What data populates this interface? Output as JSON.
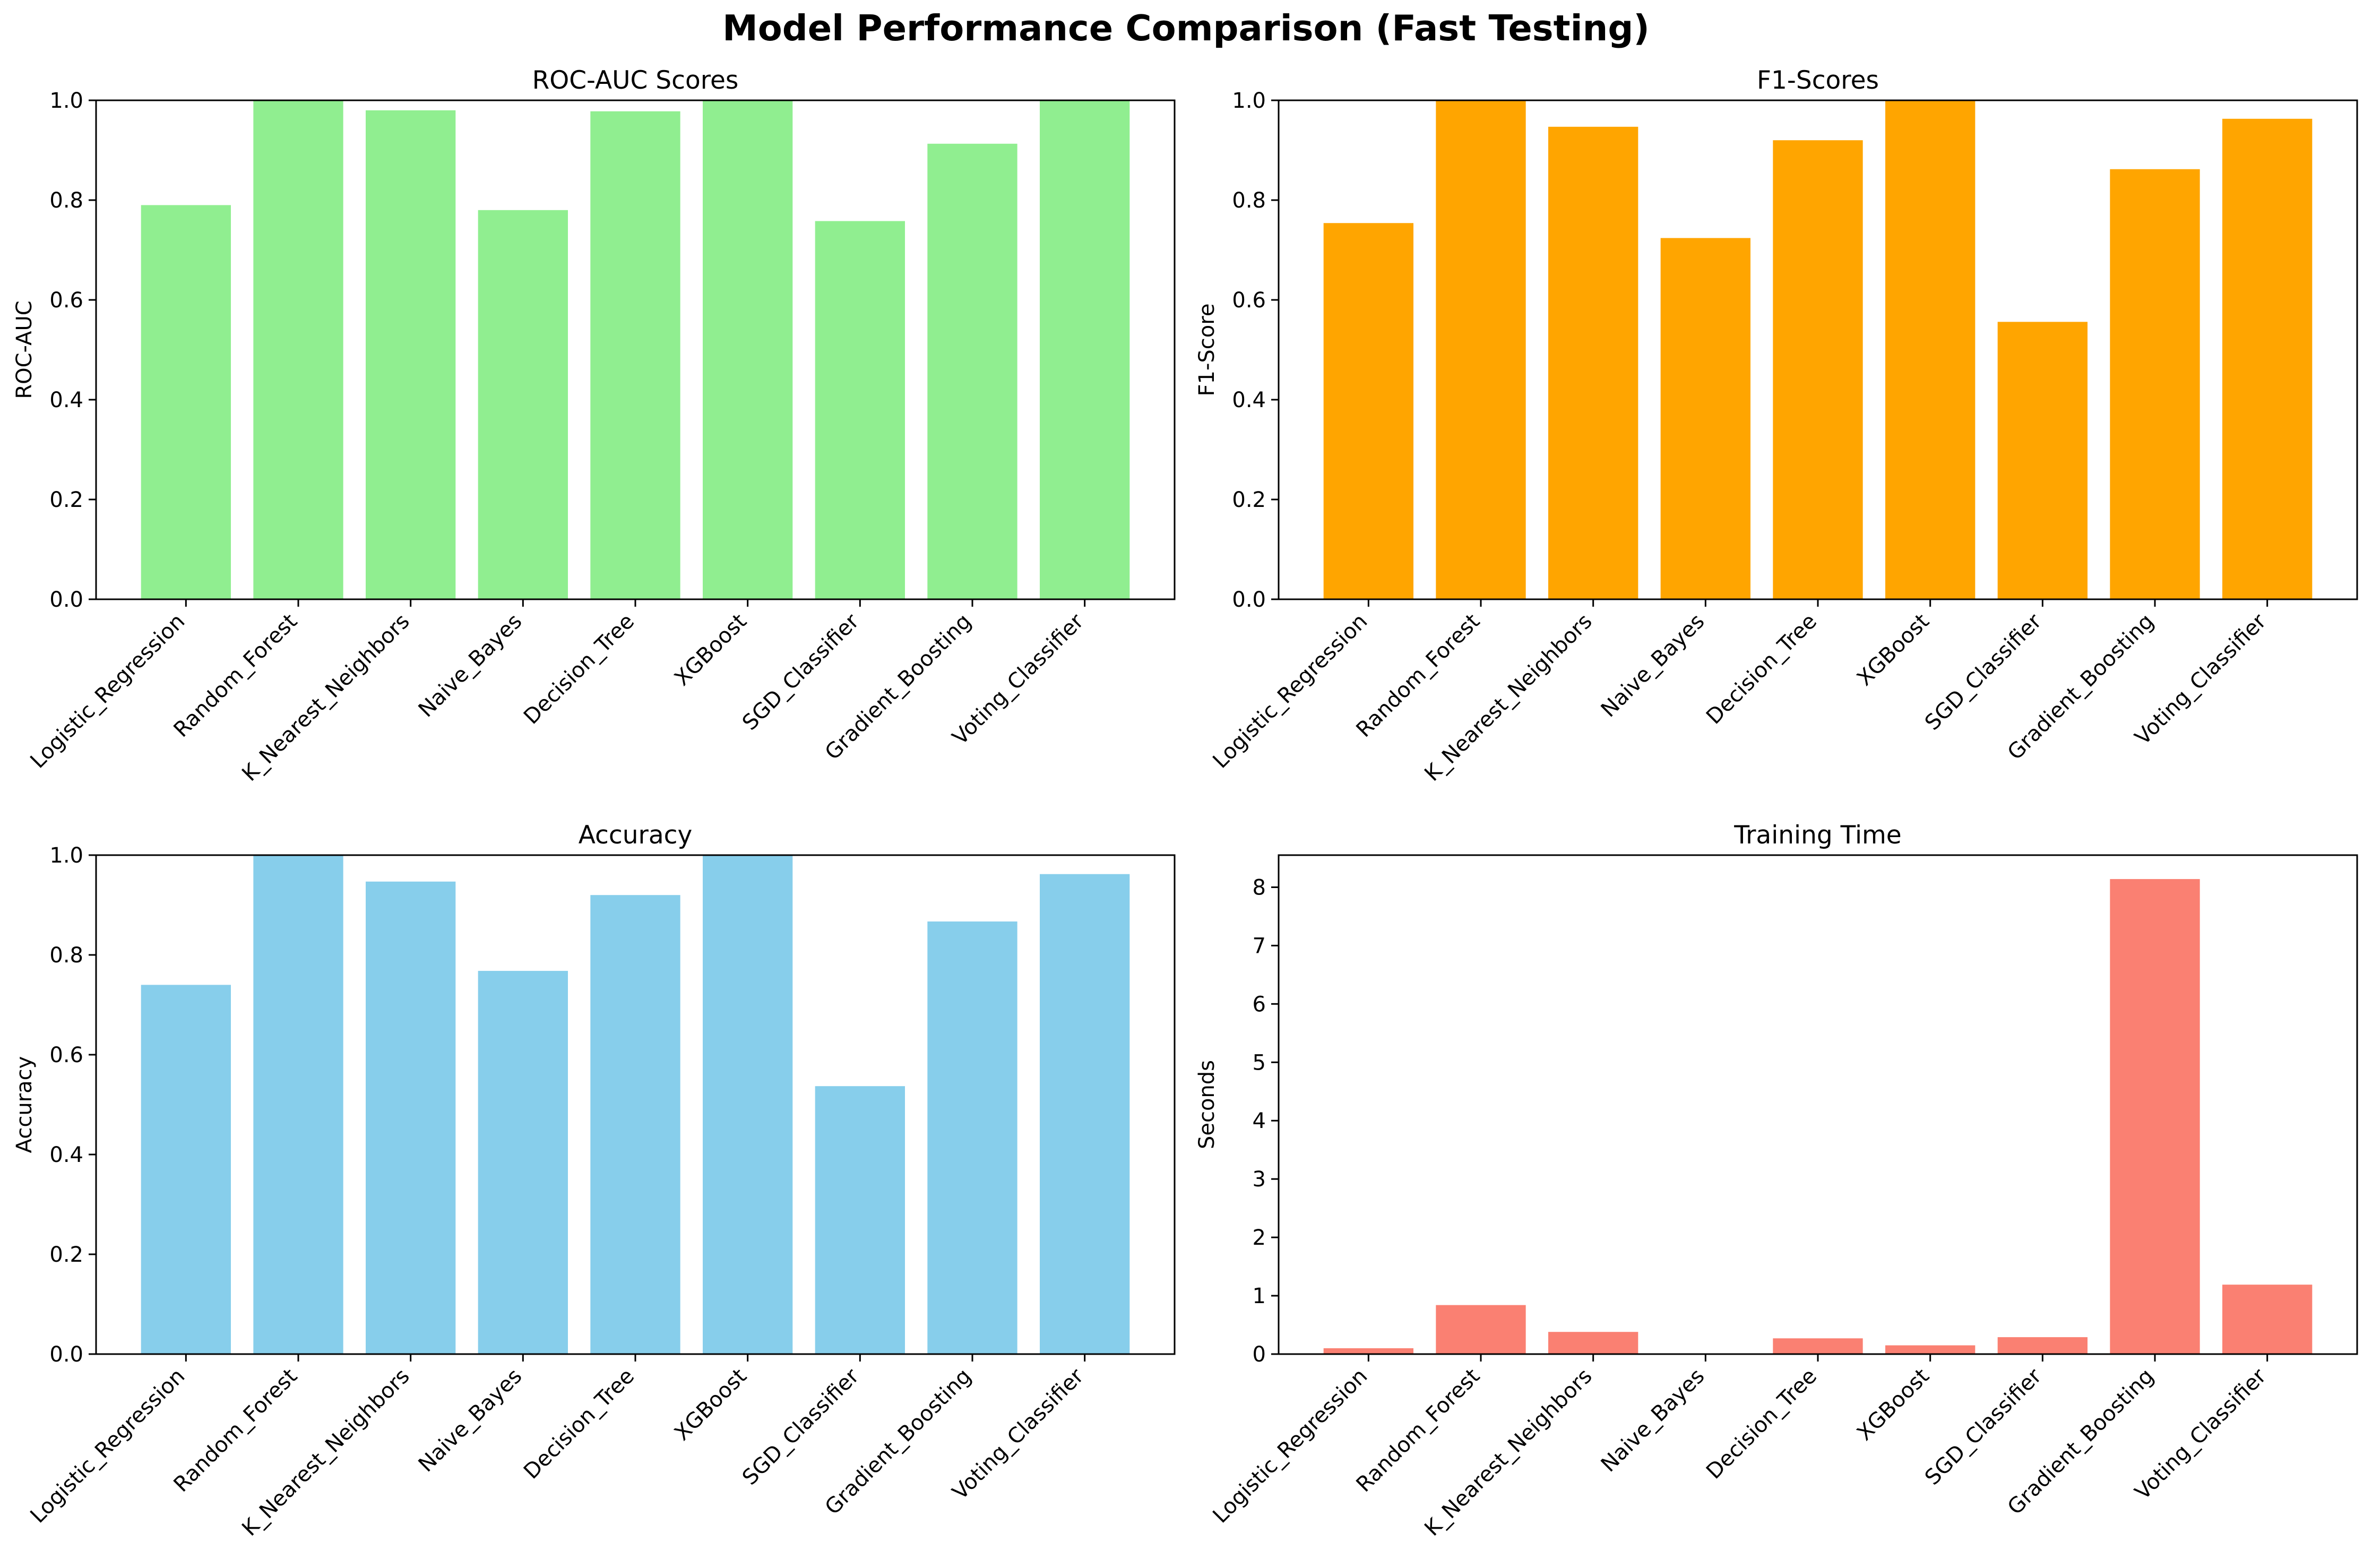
{
  "page_title": "Model Performance Comparison (Fast Testing)",
  "chart_data": [
    {
      "type": "bar",
      "title": "ROC-AUC Scores",
      "xlabel": "",
      "ylabel": "ROC-AUC",
      "color": "#90EE90",
      "ylim": [
        0,
        1.0
      ],
      "yticks": [
        "0.0",
        "0.2",
        "0.4",
        "0.6",
        "0.8",
        "1.0"
      ],
      "categories": [
        "Logistic_Regression",
        "Random_Forest",
        "K_Nearest_Neighbors",
        "Naive_Bayes",
        "Decision_Tree",
        "XGBoost",
        "SGD_Classifier",
        "Gradient_Boosting",
        "Voting_Classifier"
      ],
      "values": [
        0.79,
        1.0,
        0.98,
        0.78,
        0.978,
        1.0,
        0.758,
        0.913,
        1.0
      ]
    },
    {
      "type": "bar",
      "title": "F1-Scores",
      "xlabel": "",
      "ylabel": "F1-Score",
      "color": "#FFA500",
      "ylim": [
        0,
        1.0
      ],
      "yticks": [
        "0.0",
        "0.2",
        "0.4",
        "0.6",
        "0.8",
        "1.0"
      ],
      "categories": [
        "Logistic_Regression",
        "Random_Forest",
        "K_Nearest_Neighbors",
        "Naive_Bayes",
        "Decision_Tree",
        "XGBoost",
        "SGD_Classifier",
        "Gradient_Boosting",
        "Voting_Classifier"
      ],
      "values": [
        0.754,
        1.0,
        0.947,
        0.724,
        0.92,
        1.0,
        0.556,
        0.862,
        0.963
      ]
    },
    {
      "type": "bar",
      "title": "Accuracy",
      "xlabel": "",
      "ylabel": "Accuracy",
      "color": "#87CEEB",
      "ylim": [
        0,
        1.0
      ],
      "yticks": [
        "0.0",
        "0.2",
        "0.4",
        "0.6",
        "0.8",
        "1.0"
      ],
      "categories": [
        "Logistic_Regression",
        "Random_Forest",
        "K_Nearest_Neighbors",
        "Naive_Bayes",
        "Decision_Tree",
        "XGBoost",
        "SGD_Classifier",
        "Gradient_Boosting",
        "Voting_Classifier"
      ],
      "values": [
        0.74,
        1.0,
        0.947,
        0.768,
        0.92,
        1.0,
        0.537,
        0.867,
        0.962
      ]
    },
    {
      "type": "bar",
      "title": "Training Time",
      "xlabel": "",
      "ylabel": "Seconds",
      "color": "#FA8072",
      "ylim": [
        0,
        8.55
      ],
      "yticks": [
        "0",
        "1",
        "2",
        "3",
        "4",
        "5",
        "6",
        "7",
        "8"
      ],
      "categories": [
        "Logistic_Regression",
        "Random_Forest",
        "K_Nearest_Neighbors",
        "Naive_Bayes",
        "Decision_Tree",
        "XGBoost",
        "SGD_Classifier",
        "Gradient_Boosting",
        "Voting_Classifier"
      ],
      "values": [
        0.1,
        0.84,
        0.38,
        0.01,
        0.27,
        0.15,
        0.29,
        8.14,
        1.19
      ]
    }
  ]
}
